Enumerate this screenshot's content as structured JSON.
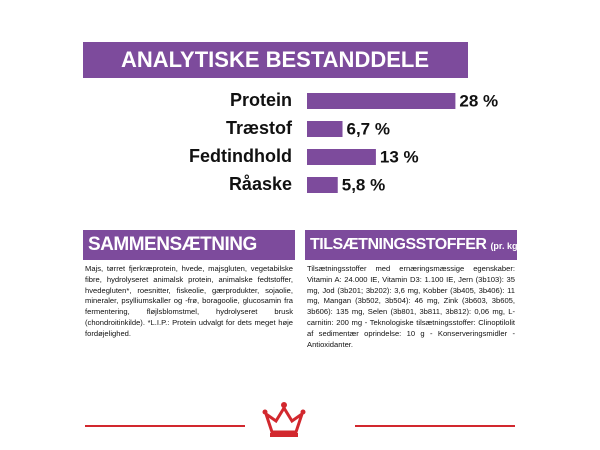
{
  "chart_data": {
    "type": "bar",
    "orientation": "horizontal",
    "title": "ANALYTISKE BESTANDDELE",
    "categories": [
      "Protein",
      "Træstof",
      "Fedtindhold",
      "Råaske"
    ],
    "values": [
      28,
      6.7,
      13,
      5.8
    ],
    "value_labels": [
      "28 %",
      "6,7 %",
      "13 %",
      "5,8 %"
    ],
    "color": "#7d4b9c"
  },
  "composition": {
    "title": "SAMMENSÆTNING",
    "text": "Majs, tørret fjerkræprotein, hvede, majsgluten, vegetabilske fibre, hydrolyseret animalsk protein, animalske fedtstoffer, hvedegluten*, roesnitter, fiskeolie, gærprodukter, sojaolie, mineraler, psylliumskaller og -frø, boragoolie, glucosamin fra fermentering, fløjlsblomstmel, hydrolyseret brusk (chondroitinkilde). *L.I.P.: Protein udvalgt for dets meget høje fordøjelighed."
  },
  "additives": {
    "title": "TILSÆTNINGSSTOFFER",
    "unit": "(pr. kg)",
    "text": "Tilsætningsstoffer med ernæringsmæssige egenskaber: Vitamin A: 24.000 IE, Vitamin D3: 1.100 IE, Jern (3b103): 35 mg, Jod (3b201; 3b202): 3,6 mg, Kobber (3b405, 3b406): 11 mg, Mangan (3b502, 3b504): 46 mg, Zink (3b603, 3b605, 3b606): 135 mg, Selen (3b801, 3b811, 3b812): 0,06 mg, L-carnitin: 200 mg - Teknologiske tilsætningsstoffer: Clinoptilolit af sedimentær oprindelse: 10 g - Konserveringsmidler - Antioxidanter."
  }
}
